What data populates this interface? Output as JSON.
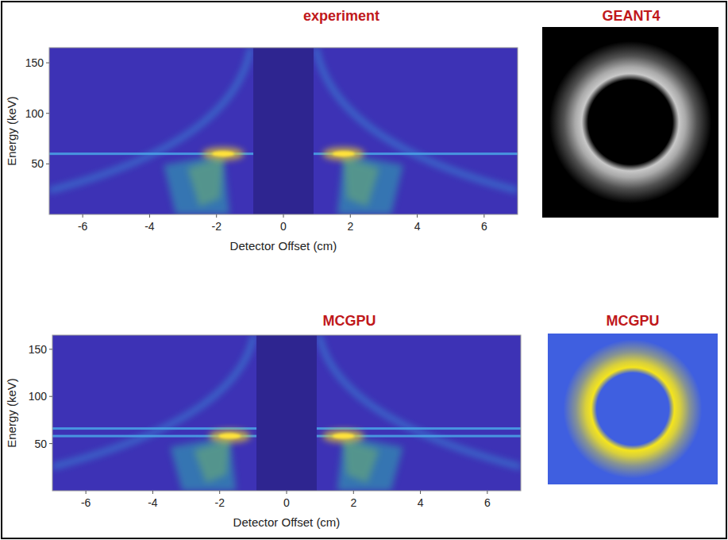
{
  "chart_data": [
    {
      "type": "heatmap",
      "title": "experiment",
      "x_label": "Detector Offset (cm)",
      "y_label": "Energy (keV)",
      "xlim": [
        -7,
        7
      ],
      "xticks": [
        -6,
        -4,
        -2,
        0,
        2,
        4,
        6
      ],
      "ylim": [
        0,
        165
      ],
      "yticks": [
        50,
        100,
        150
      ],
      "line_energies": [
        60
      ],
      "hotspots": [
        {
          "x": -1.8,
          "y": 60
        },
        {
          "x": 1.8,
          "y": 60
        }
      ],
      "blocked_offset": [
        -0.9,
        0.9
      ]
    },
    {
      "type": "image",
      "title": "GEANT4",
      "colors": [
        "#000000",
        "#c8c8c8"
      ]
    },
    {
      "type": "heatmap",
      "title": "MCGPU",
      "x_label": "Detector Offset (cm)",
      "y_label": "Energy (keV)",
      "xlim": [
        -7,
        7
      ],
      "xticks": [
        -6,
        -4,
        -2,
        0,
        2,
        4,
        6
      ],
      "ylim": [
        0,
        165
      ],
      "yticks": [
        50,
        100,
        150
      ],
      "line_energies": [
        58,
        66
      ],
      "hotspots": [
        {
          "x": -1.7,
          "y": 58
        },
        {
          "x": 1.7,
          "y": 58
        }
      ],
      "blocked_offset": [
        -0.9,
        0.9
      ]
    },
    {
      "type": "image",
      "title": "MCGPU",
      "colors": [
        "#3f5fe0",
        "#f4e41e"
      ]
    }
  ]
}
